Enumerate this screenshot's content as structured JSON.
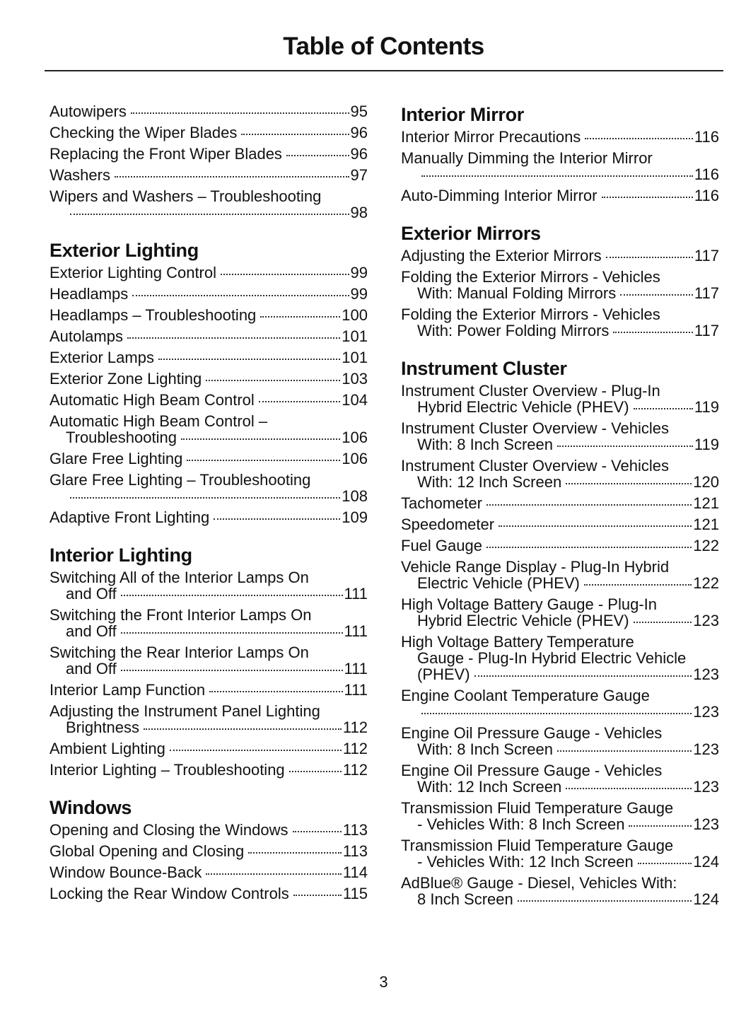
{
  "title": "Table of Contents",
  "page_number": "3",
  "columns": [
    {
      "sections": [
        {
          "heading": "",
          "entries": [
            {
              "text": "Autowipers",
              "page": "95"
            },
            {
              "text": "Checking the Wiper Blades",
              "page": "96"
            },
            {
              "text": "Replacing the Front Wiper Blades",
              "page": "96"
            },
            {
              "text": "Washers",
              "page": "97"
            },
            {
              "text": "Wipers and Washers – Troubleshooting",
              "cont": "",
              "page": "98"
            }
          ]
        },
        {
          "heading": "Exterior Lighting",
          "entries": [
            {
              "text": "Exterior Lighting Control",
              "page": "99"
            },
            {
              "text": "Headlamps",
              "page": "99"
            },
            {
              "text": "Headlamps – Troubleshooting",
              "page": "100"
            },
            {
              "text": "Autolamps",
              "page": "101"
            },
            {
              "text": "Exterior Lamps",
              "page": "101"
            },
            {
              "text": "Exterior Zone Lighting",
              "page": "103"
            },
            {
              "text": "Automatic High Beam Control",
              "page": "104"
            },
            {
              "text": "Automatic High Beam Control –",
              "cont": "Troubleshooting",
              "page": "106"
            },
            {
              "text": "Glare Free Lighting",
              "page": "106"
            },
            {
              "text": "Glare Free Lighting – Troubleshooting",
              "cont": "",
              "page": "108"
            },
            {
              "text": "Adaptive Front Lighting",
              "page": "109"
            }
          ]
        },
        {
          "heading": "Interior Lighting",
          "entries": [
            {
              "text": "Switching All of the Interior Lamps On",
              "cont": "and Off",
              "page": "111"
            },
            {
              "text": "Switching the Front Interior Lamps On",
              "cont": "and Off",
              "page": "111"
            },
            {
              "text": "Switching the Rear Interior Lamps On",
              "cont": "and Off",
              "page": "111"
            },
            {
              "text": "Interior Lamp Function",
              "page": "111"
            },
            {
              "text": "Adjusting the Instrument Panel Lighting",
              "cont": "Brightness",
              "page": "112"
            },
            {
              "text": "Ambient Lighting",
              "page": "112"
            },
            {
              "text": "Interior Lighting – Troubleshooting",
              "page": "112"
            }
          ]
        },
        {
          "heading": "Windows",
          "entries": [
            {
              "text": "Opening and Closing the Windows",
              "page": "113"
            },
            {
              "text": "Global Opening and Closing",
              "page": "113"
            },
            {
              "text": "Window Bounce-Back",
              "page": "114"
            },
            {
              "text": "Locking the Rear Window Controls",
              "page": "115"
            }
          ]
        }
      ]
    },
    {
      "sections": [
        {
          "heading": "Interior Mirror",
          "entries": [
            {
              "text": "Interior Mirror Precautions",
              "page": "116"
            },
            {
              "text": "Manually Dimming the Interior Mirror",
              "cont": "",
              "page": "116"
            },
            {
              "text": "Auto-Dimming Interior Mirror",
              "page": "116"
            }
          ]
        },
        {
          "heading": "Exterior Mirrors",
          "entries": [
            {
              "text": "Adjusting the Exterior Mirrors",
              "page": "117"
            },
            {
              "text": "Folding the Exterior Mirrors - Vehicles",
              "cont": "With: Manual Folding Mirrors",
              "page": "117"
            },
            {
              "text": "Folding the Exterior Mirrors - Vehicles",
              "cont": "With: Power Folding Mirrors",
              "page": "117"
            }
          ]
        },
        {
          "heading": "Instrument Cluster",
          "entries": [
            {
              "text": "Instrument Cluster Overview - Plug-In",
              "cont": "Hybrid Electric Vehicle (PHEV)",
              "page": "119"
            },
            {
              "text": "Instrument Cluster Overview - Vehicles",
              "cont": "With: 8 Inch Screen",
              "page": "119"
            },
            {
              "text": "Instrument Cluster Overview - Vehicles",
              "cont": "With: 12 Inch Screen",
              "page": "120"
            },
            {
              "text": "Tachometer",
              "page": "121"
            },
            {
              "text": "Speedometer",
              "page": "121"
            },
            {
              "text": "Fuel Gauge",
              "page": "122"
            },
            {
              "text": "Vehicle Range Display - Plug-In Hybrid",
              "cont": "Electric Vehicle (PHEV)",
              "page": "122"
            },
            {
              "text": "High Voltage Battery Gauge - Plug-In",
              "cont": "Hybrid Electric Vehicle (PHEV)",
              "page": "123"
            },
            {
              "text": "High Voltage Battery Temperature",
              "cont2": "Gauge - Plug-In Hybrid Electric Vehicle",
              "cont": "(PHEV)",
              "page": "123"
            },
            {
              "text": "Engine Coolant Temperature Gauge",
              "cont": "",
              "page": "123"
            },
            {
              "text": "Engine Oil Pressure Gauge - Vehicles",
              "cont": "With: 8 Inch Screen",
              "page": "123"
            },
            {
              "text": "Engine Oil Pressure Gauge - Vehicles",
              "cont": "With: 12 Inch Screen",
              "page": "123"
            },
            {
              "text": "Transmission Fluid Temperature Gauge",
              "cont": "- Vehicles With: 8 Inch Screen",
              "page": "123"
            },
            {
              "text": "Transmission Fluid Temperature Gauge",
              "cont": "- Vehicles With: 12 Inch Screen",
              "page": "124"
            },
            {
              "text": "AdBlue® Gauge - Diesel, Vehicles With:",
              "cont": "8 Inch Screen",
              "page": "124"
            }
          ]
        }
      ]
    }
  ]
}
